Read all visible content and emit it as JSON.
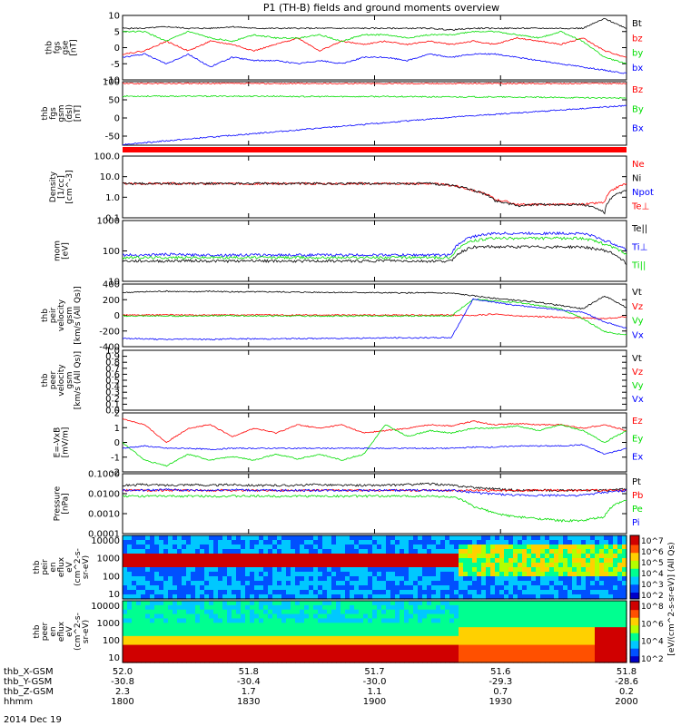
{
  "title": "P1 (TH-B) fields and ground moments overview",
  "date_label": "2014 Dec 19",
  "colors": {
    "black": "#000000",
    "red": "#ff0000",
    "green": "#00dd00",
    "blue": "#0000ff"
  },
  "chart_data": [
    {
      "id": "fgs_gse",
      "type": "line",
      "ylabel": [
        "thb",
        "fgs",
        "gse",
        "[nT]"
      ],
      "ylim": [
        -10,
        10
      ],
      "yticks": [
        "-10",
        "-5",
        "0",
        "5",
        "10"
      ],
      "series": [
        {
          "name": "Bt",
          "color": "black",
          "values": [
            6,
            6,
            6.5,
            6,
            6,
            6.5,
            6,
            6,
            6,
            6,
            6,
            6,
            6,
            6,
            6,
            5.5,
            6,
            6,
            6,
            6,
            6,
            6,
            9,
            6
          ]
        },
        {
          "name": "bz",
          "color": "red",
          "values": [
            -2,
            -1,
            2,
            -1,
            2,
            1,
            -1,
            1,
            3,
            -1,
            2,
            1,
            2,
            1,
            2,
            1,
            2,
            1,
            3,
            2,
            1,
            3,
            -1,
            -3
          ]
        },
        {
          "name": "by",
          "color": "green",
          "values": [
            5,
            5,
            2,
            5,
            3,
            2,
            4,
            3,
            3,
            4,
            2,
            4,
            4,
            3,
            4,
            4,
            5,
            5,
            4,
            3,
            5,
            2,
            -3,
            -5
          ]
        },
        {
          "name": "bx",
          "color": "blue",
          "values": [
            -3,
            -2,
            -5,
            -2,
            -6,
            -3,
            -4,
            -4,
            -5,
            -4,
            -5,
            -3,
            -3,
            -4,
            -2,
            -3,
            -2,
            -2,
            -3,
            -4,
            -5,
            -6,
            -7,
            -8
          ]
        }
      ]
    },
    {
      "id": "fgs_gsm",
      "type": "line",
      "ylabel": [
        "thb",
        "fgs",
        "gsm",
        "(dsl)",
        "[nT]"
      ],
      "ylim": [
        -75,
        100
      ],
      "yticks": [
        "-50",
        "0",
        "50",
        "100"
      ],
      "series": [
        {
          "name": "Bz",
          "color": "red",
          "values": [
            95,
            95,
            95,
            95,
            95,
            95,
            95,
            95,
            95,
            95,
            95,
            95,
            95,
            95,
            95,
            95,
            95,
            95,
            95,
            95,
            95,
            95,
            95,
            95
          ]
        },
        {
          "name": "By",
          "color": "green",
          "values": [
            60,
            60,
            60,
            60,
            60,
            60,
            60,
            60,
            59,
            59,
            59,
            59,
            59,
            59,
            58,
            58,
            58,
            58,
            57,
            57,
            56,
            56,
            55,
            55
          ]
        },
        {
          "name": "Bx",
          "color": "blue",
          "values": [
            -73,
            -68,
            -63,
            -58,
            -53,
            -48,
            -43,
            -38,
            -33,
            -28,
            -23,
            -18,
            -13,
            -8,
            -3,
            2,
            6,
            10,
            14,
            18,
            22,
            26,
            30,
            34
          ]
        }
      ]
    },
    {
      "id": "density",
      "type": "line",
      "log": true,
      "ylabel": [
        "Density",
        "[1/cc]",
        "[cm^-3]"
      ],
      "ylim": [
        0.05,
        200
      ],
      "yticks": [
        "100.0",
        "10.0",
        "1.0",
        "0.1"
      ],
      "series": [
        {
          "name": "Ne",
          "color": "red",
          "values": [
            5,
            5,
            5,
            5,
            5,
            5,
            5,
            5,
            5,
            5,
            5,
            5,
            5,
            5,
            5,
            4,
            2,
            0.6,
            0.3,
            0.3,
            0.3,
            0.3,
            0.4,
            5
          ]
        },
        {
          "name": "Ni",
          "color": "black",
          "values": [
            5,
            5,
            5,
            5,
            5,
            5,
            5,
            5,
            5,
            5,
            5,
            5,
            5,
            5,
            5,
            4,
            2,
            0.5,
            0.25,
            0.3,
            0.3,
            0.3,
            0.1,
            2
          ]
        },
        {
          "name": "Npot",
          "color": "blue",
          "values": []
        },
        {
          "name": "Te⊥",
          "color": "red",
          "values": []
        }
      ]
    },
    {
      "id": "temperature",
      "type": "line",
      "log": true,
      "ylabel": [
        "mom",
        "[eV]"
      ],
      "ylim": [
        3,
        3000
      ],
      "yticks": [
        "1000",
        "100",
        "10"
      ],
      "series": [
        {
          "name": "Te||",
          "color": "black",
          "values": [
            30,
            30,
            30,
            32,
            30,
            30,
            32,
            30,
            30,
            30,
            30,
            30,
            32,
            30,
            30,
            30,
            150,
            150,
            150,
            150,
            150,
            150,
            100,
            20
          ]
        },
        {
          "name": "Ti⊥",
          "color": "blue",
          "values": [
            60,
            60,
            65,
            60,
            60,
            60,
            60,
            60,
            60,
            60,
            60,
            60,
            60,
            60,
            60,
            60,
            500,
            700,
            700,
            700,
            700,
            700,
            300,
            100
          ]
        },
        {
          "name": "Ti||",
          "color": "green",
          "values": [
            45,
            45,
            45,
            45,
            45,
            45,
            45,
            45,
            45,
            45,
            45,
            45,
            45,
            45,
            45,
            45,
            300,
            400,
            400,
            400,
            400,
            400,
            200,
            60
          ]
        }
      ]
    },
    {
      "id": "velocity_gsm",
      "type": "line",
      "ylabel": [
        "thb",
        "peir",
        "velocity",
        "gsm",
        "[km/s (All Qs)]"
      ],
      "ylim": [
        -480,
        480
      ],
      "yticks": [
        "400",
        "200",
        "0",
        "-200",
        "-400"
      ],
      "series": [
        {
          "name": "Vt",
          "color": "black",
          "values": [
            350,
            360,
            370,
            360,
            370,
            360,
            360,
            360,
            355,
            355,
            350,
            350,
            345,
            345,
            345,
            340,
            300,
            260,
            230,
            200,
            150,
            100,
            300,
            120
          ]
        },
        {
          "name": "Vz",
          "color": "red",
          "values": [
            5,
            5,
            10,
            5,
            5,
            5,
            10,
            5,
            5,
            5,
            5,
            5,
            5,
            5,
            5,
            5,
            0,
            20,
            -10,
            -20,
            -30,
            -40,
            -50,
            -20
          ]
        },
        {
          "name": "Vy",
          "color": "green",
          "values": [
            -10,
            -10,
            -10,
            -10,
            -5,
            -5,
            -10,
            -10,
            -10,
            -10,
            -10,
            -10,
            -10,
            -10,
            -10,
            -10,
            250,
            220,
            200,
            150,
            100,
            -50,
            -250,
            -300
          ]
        },
        {
          "name": "Vx",
          "color": "blue",
          "values": [
            -350,
            -360,
            -370,
            -360,
            -370,
            -360,
            -360,
            -360,
            -355,
            -355,
            -350,
            -350,
            -345,
            -345,
            -345,
            -340,
            250,
            200,
            150,
            120,
            80,
            50,
            -100,
            -200
          ]
        }
      ]
    },
    {
      "id": "velocity_peer",
      "type": "line",
      "ylabel": [
        "thb",
        "peer",
        "velocity",
        "gsm",
        "[km/s (All Qs)]"
      ],
      "ylim": [
        0,
        1
      ],
      "yticks": [
        "1.0",
        "0.9",
        "0.8",
        "0.7",
        "0.6",
        "0.5",
        "0.4",
        "0.3",
        "0.2",
        "0.1",
        "0.0"
      ],
      "series": [
        {
          "name": "Vt",
          "color": "black",
          "values": []
        },
        {
          "name": "Vz",
          "color": "red",
          "values": []
        },
        {
          "name": "Vy",
          "color": "green",
          "values": []
        },
        {
          "name": "Vx",
          "color": "blue",
          "values": []
        }
      ]
    },
    {
      "id": "efield",
      "type": "line",
      "ylabel": [
        "E=-VxB",
        "[mV/m]"
      ],
      "ylim": [
        -2.5,
        2.5
      ],
      "yticks": [
        "2",
        "1",
        "0",
        "-1",
        "-2"
      ],
      "series": [
        {
          "name": "Ez",
          "color": "red",
          "values": [
            2,
            1.5,
            0,
            1.2,
            1.5,
            0.5,
            1.2,
            0.8,
            1.5,
            1.2,
            1.5,
            0.8,
            1,
            1.2,
            1.5,
            1.4,
            1.8,
            1.5,
            1.6,
            1.5,
            1.5,
            1.2,
            1.5,
            1
          ]
        },
        {
          "name": "Ey",
          "color": "green",
          "values": [
            0,
            -1.5,
            -2,
            -1,
            -1.5,
            -1.2,
            -1.5,
            -1,
            -1.4,
            -1,
            -1.5,
            -1,
            1.5,
            0.5,
            1,
            0.8,
            1.2,
            1.2,
            1.4,
            1,
            1.5,
            1,
            0,
            1
          ]
        },
        {
          "name": "Ex",
          "color": "blue",
          "values": [
            -0.5,
            -0.3,
            -0.5,
            -0.5,
            -0.6,
            -0.5,
            -0.5,
            -0.5,
            -0.5,
            -0.5,
            -0.5,
            -0.5,
            -0.5,
            -0.5,
            -0.5,
            -0.5,
            -0.4,
            -0.4,
            -0.3,
            -0.3,
            -0.3,
            -0.2,
            -1,
            -0.5
          ]
        }
      ]
    },
    {
      "id": "pressure",
      "type": "line",
      "log": true,
      "ylabel": [
        "Pressure",
        "[nPa]"
      ],
      "ylim": [
        5e-05,
        0.2
      ],
      "yticks": [
        "0.1000",
        "0.0100",
        "0.0010",
        "0.0001"
      ],
      "series": [
        {
          "name": "Pt",
          "color": "black",
          "values": [
            0.04,
            0.045,
            0.04,
            0.045,
            0.04,
            0.045,
            0.04,
            0.04,
            0.04,
            0.045,
            0.04,
            0.04,
            0.04,
            0.045,
            0.05,
            0.04,
            0.03,
            0.025,
            0.02,
            0.02,
            0.02,
            0.02,
            0.02,
            0.025
          ]
        },
        {
          "name": "Pb",
          "color": "red",
          "values": [
            0.02,
            0.02,
            0.02,
            0.02,
            0.02,
            0.02,
            0.02,
            0.02,
            0.02,
            0.02,
            0.02,
            0.02,
            0.02,
            0.02,
            0.02,
            0.02,
            0.02,
            0.02,
            0.02,
            0.02,
            0.02,
            0.02,
            0.02,
            0.02
          ]
        },
        {
          "name": "Pe",
          "color": "green",
          "values": [
            0.009,
            0.009,
            0.009,
            0.009,
            0.009,
            0.009,
            0.009,
            0.009,
            0.009,
            0.009,
            0.009,
            0.009,
            0.009,
            0.009,
            0.009,
            0.008,
            0.002,
            0.0008,
            0.0005,
            0.0004,
            0.0003,
            0.0003,
            0.0005,
            0.005
          ]
        },
        {
          "name": "Pi",
          "color": "blue",
          "values": [
            0.02,
            0.02,
            0.022,
            0.02,
            0.02,
            0.022,
            0.02,
            0.02,
            0.02,
            0.02,
            0.02,
            0.02,
            0.02,
            0.02,
            0.02,
            0.02,
            0.015,
            0.012,
            0.01,
            0.01,
            0.01,
            0.01,
            0.015,
            0.02
          ]
        }
      ]
    },
    {
      "id": "peir_spec",
      "type": "heatmap",
      "ylabel": [
        "thb",
        "peir",
        "en",
        "eflux",
        "eV",
        "(cm^2-s-",
        "sr-eV)"
      ],
      "yticks": [
        "10000",
        "1000",
        "100",
        "10"
      ],
      "colorbar_ticks": [
        "10^7",
        "10^6",
        "10^5",
        "10^4",
        "10^3",
        "10^2"
      ],
      "colorbar_label": "[eV/(cm^2-s-sr-eV)] (All Qs)"
    },
    {
      "id": "peer_spec",
      "type": "heatmap",
      "ylabel": [
        "thb",
        "peer",
        "en",
        "eflux",
        "eV",
        "(cm^2-s-",
        "sr-eV)"
      ],
      "yticks": [
        "10000",
        "1000",
        "100",
        "10"
      ],
      "colorbar_ticks": [
        "10^8",
        "10^6",
        "10^4",
        "10^2"
      ],
      "colorbar_label": "[eV/(cm^2-s-sr-eV)]"
    }
  ],
  "legend_labels": {
    "fgs_gse": [
      "Bt",
      "bz",
      "by",
      "bx"
    ],
    "fgs_gsm": [
      "Bz",
      "By",
      "Bx"
    ],
    "density": [
      "Ne",
      "Ni",
      "Npot",
      "Te⊥"
    ],
    "temperature": [
      "Te||",
      "Ti⊥",
      "Ti||"
    ],
    "velocity_gsm": [
      "Vt",
      "Vz",
      "Vy",
      "Vx"
    ],
    "velocity_peer": [
      "Vt",
      "Vz",
      "Vy",
      "Vx"
    ],
    "efield": [
      "Ez",
      "Ey",
      "Ex"
    ],
    "pressure": [
      "Pt",
      "Pb",
      "Pe",
      "Pi"
    ]
  },
  "x_axis": {
    "rows": [
      {
        "label": "thb_X-GSM",
        "values": [
          "52.0",
          "51.8",
          "51.7",
          "51.6",
          "51.8"
        ]
      },
      {
        "label": "thb_Y-GSM",
        "values": [
          "-30.8",
          "-30.4",
          "-30.0",
          "-29.3",
          "-28.6"
        ]
      },
      {
        "label": "thb_Z-GSM",
        "values": [
          "2.3",
          "1.7",
          "1.1",
          "0.7",
          "0.2"
        ]
      },
      {
        "label": "hhmm",
        "values": [
          "1800",
          "1830",
          "1900",
          "1930",
          "2000"
        ]
      }
    ]
  }
}
